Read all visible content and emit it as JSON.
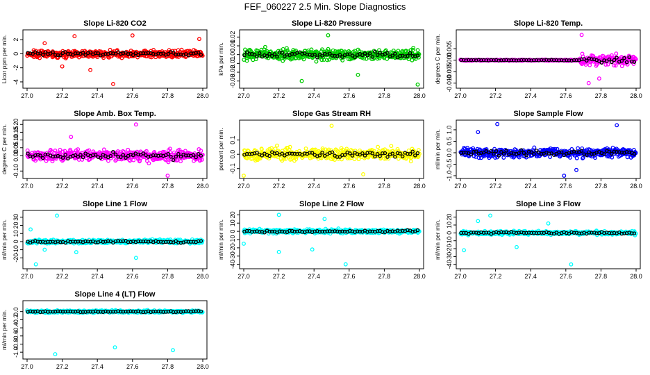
{
  "figure": {
    "title": "FEF_060227  2.5 Min. Slope Diagnostics"
  },
  "chart_data": [
    {
      "type": "scatter",
      "title": "Slope Li-820 CO2",
      "ylabel": "Licor ppm per min.",
      "color": "#ff0000",
      "xlim": [
        27.0,
        28.0
      ],
      "ylim": [
        -4.5,
        3.0
      ],
      "xticks": [
        "27.0",
        "27.2",
        "27.4",
        "27.6",
        "27.8",
        "28.0"
      ],
      "yticks": [
        "-4",
        "-2",
        "0",
        "2"
      ],
      "ytick_values": [
        -4,
        -2,
        0,
        2
      ],
      "spread": 0.9,
      "outliers": [
        [
          27.49,
          -4.3
        ],
        [
          27.6,
          2.6
        ],
        [
          27.98,
          2.1
        ],
        [
          27.2,
          -1.8
        ],
        [
          27.36,
          -2.3
        ],
        [
          27.1,
          1.5
        ],
        [
          27.27,
          2.5
        ]
      ]
    },
    {
      "type": "scatter",
      "title": "Slope Li-820 Pressure",
      "ylabel": "kPa per min.",
      "color": "#00cc00",
      "xlim": [
        27.0,
        28.0
      ],
      "ylim": [
        -0.035,
        0.025
      ],
      "xticks": [
        "27.0",
        "27.2",
        "27.4",
        "27.6",
        "27.8",
        "28.0"
      ],
      "yticks": [
        "-0.03",
        "-0.02",
        "-0.01",
        "0.00",
        "0.01",
        "0.02"
      ],
      "ytick_values": [
        -0.03,
        -0.02,
        -0.01,
        0.0,
        0.01,
        0.02
      ],
      "spread": 0.01,
      "outliers": [
        [
          27.33,
          -0.03
        ],
        [
          27.99,
          -0.034
        ],
        [
          27.48,
          0.022
        ],
        [
          27.65,
          -0.023
        ]
      ]
    },
    {
      "type": "scatter",
      "title": "Slope Li-820 Temp.",
      "ylabel": "degrees C per min.",
      "color": "#ff00ff",
      "xlim": [
        27.0,
        28.0
      ],
      "ylim": [
        -0.011,
        0.012
      ],
      "xticks": [
        "27.0",
        "27.2",
        "27.4",
        "27.6",
        "27.8",
        "28.0"
      ],
      "yticks": [
        "-0.010",
        "-0.005",
        "0.000",
        "0.005"
      ],
      "ytick_values": [
        -0.01,
        -0.005,
        0.0,
        0.005
      ],
      "spread": 0.0004,
      "spread_late": 0.004,
      "late_from": 27.68,
      "outliers": [
        [
          27.69,
          0.011
        ],
        [
          27.73,
          -0.01
        ],
        [
          27.79,
          -0.008
        ]
      ]
    },
    {
      "type": "scatter",
      "title": "Slope Amb. Box Temp.",
      "ylabel": "degrees C per min.",
      "color": "#ff00ff",
      "xlim": [
        27.0,
        28.0
      ],
      "ylim": [
        -0.13,
        0.21
      ],
      "xticks": [
        "27.0",
        "27.2",
        "27.4",
        "27.6",
        "27.8",
        "28.0"
      ],
      "yticks": [
        "-0.10",
        "0.00",
        "0.05",
        "0.10",
        "0.15",
        "0.20"
      ],
      "ytick_values": [
        -0.1,
        0.0,
        0.05,
        0.1,
        0.15,
        0.2
      ],
      "spread": 0.06,
      "outliers": [
        [
          27.62,
          0.2
        ],
        [
          27.8,
          -0.13
        ],
        [
          27.25,
          0.12
        ]
      ]
    },
    {
      "type": "scatter",
      "title": "Slope Gas Stream RH",
      "ylabel": "percent per min.",
      "color": "#ffff00",
      "xlim": [
        27.0,
        28.0
      ],
      "ylim": [
        -0.15,
        0.22
      ],
      "xticks": [
        "27.0",
        "27.2",
        "27.4",
        "27.6",
        "27.8",
        "28.0"
      ],
      "yticks": [
        "-0.1",
        "0.0",
        "0.1"
      ],
      "ytick_values": [
        -0.1,
        0.0,
        0.1
      ],
      "spread": 0.07,
      "outliers": [
        [
          27.5,
          0.2
        ],
        [
          27.0,
          -0.15
        ],
        [
          27.68,
          -0.14
        ]
      ]
    },
    {
      "type": "scatter",
      "title": "Slope Sample Flow",
      "ylabel": "ml/min per min.",
      "color": "#0000ff",
      "xlim": [
        27.0,
        28.0
      ],
      "ylim": [
        -1.0,
        1.3
      ],
      "xticks": [
        "27.0",
        "27.2",
        "27.4",
        "27.6",
        "27.8",
        "28.0"
      ],
      "yticks": [
        "-1.0",
        "-0.5",
        "0.0",
        "0.5",
        "1.0"
      ],
      "ytick_values": [
        -1.0,
        -0.5,
        0.0,
        0.5,
        1.0
      ],
      "spread": 0.35,
      "outliers": [
        [
          27.21,
          1.25
        ],
        [
          27.1,
          0.9
        ],
        [
          27.59,
          -1.0
        ],
        [
          27.89,
          1.2
        ],
        [
          27.66,
          -0.75
        ]
      ]
    },
    {
      "type": "scatter",
      "title": "Slope Line 1 Flow",
      "ylabel": "ml/min per min.",
      "color": "#00ffff",
      "xlim": [
        27.0,
        28.0
      ],
      "ylim": [
        -30,
        35
      ],
      "xticks": [
        "27.0",
        "27.2",
        "27.4",
        "27.6",
        "27.8",
        "28.0"
      ],
      "yticks": [
        "-20",
        "-10",
        "0",
        "10",
        "20",
        "30"
      ],
      "ytick_values": [
        -20,
        -10,
        0,
        10,
        20,
        30
      ],
      "spread": 4.0,
      "outliers": [
        [
          27.17,
          32
        ],
        [
          27.05,
          -28
        ],
        [
          27.62,
          -20
        ],
        [
          27.28,
          -13
        ],
        [
          27.02,
          15
        ],
        [
          27.1,
          -10
        ]
      ]
    },
    {
      "type": "scatter",
      "title": "Slope Line 2 Flow",
      "ylabel": "ml/min per min.",
      "color": "#00ffff",
      "xlim": [
        27.0,
        28.0
      ],
      "ylim": [
        -42,
        22
      ],
      "xticks": [
        "27.0",
        "27.2",
        "27.4",
        "27.6",
        "27.8",
        "28.0"
      ],
      "yticks": [
        "-40",
        "-30",
        "-20",
        "-10",
        "0",
        "10",
        "20"
      ],
      "ytick_values": [
        -40,
        -30,
        -20,
        -10,
        0,
        10,
        20
      ],
      "spread": 4.0,
      "outliers": [
        [
          27.58,
          -40
        ],
        [
          27.2,
          -25
        ],
        [
          27.2,
          20
        ],
        [
          27.0,
          -15
        ],
        [
          27.46,
          15
        ],
        [
          27.39,
          -22
        ]
      ]
    },
    {
      "type": "scatter",
      "title": "Slope Line 3 Flow",
      "ylabel": "ml/min per min.",
      "color": "#00ffff",
      "xlim": [
        27.0,
        28.0
      ],
      "ylim": [
        -42,
        25
      ],
      "xticks": [
        "27.0",
        "27.2",
        "27.4",
        "27.6",
        "27.8",
        "28.0"
      ],
      "yticks": [
        "-40",
        "-30",
        "-20",
        "-10",
        "0",
        "10",
        "20"
      ],
      "ytick_values": [
        -40,
        -30,
        -20,
        -10,
        0,
        10,
        20
      ],
      "spread": 4.0,
      "outliers": [
        [
          27.17,
          22
        ],
        [
          27.63,
          -40
        ],
        [
          27.02,
          -22
        ],
        [
          27.1,
          15
        ],
        [
          27.32,
          -18
        ],
        [
          27.5,
          12
        ]
      ]
    },
    {
      "type": "scatter",
      "title": "Slope Line 4 (LT) Flow",
      "ylabel": "ml/min per min.",
      "color": "#00ffff",
      "xlim": [
        27.0,
        28.0
      ],
      "ylim": [
        -1.1,
        0.2
      ],
      "xticks": [
        "27.0",
        "27.2",
        "27.4",
        "27.6",
        "27.8",
        "28.0"
      ],
      "yticks": [
        "-1.0",
        "-0.8",
        "-0.6",
        "-0.4",
        "-0.2",
        "0.0"
      ],
      "ytick_values": [
        -1.0,
        -0.8,
        -0.6,
        -0.4,
        -0.2,
        0.0
      ],
      "spread": 0.05,
      "outliers": [
        [
          27.16,
          -1.05
        ],
        [
          27.83,
          -0.95
        ],
        [
          27.5,
          -0.88
        ]
      ]
    }
  ]
}
